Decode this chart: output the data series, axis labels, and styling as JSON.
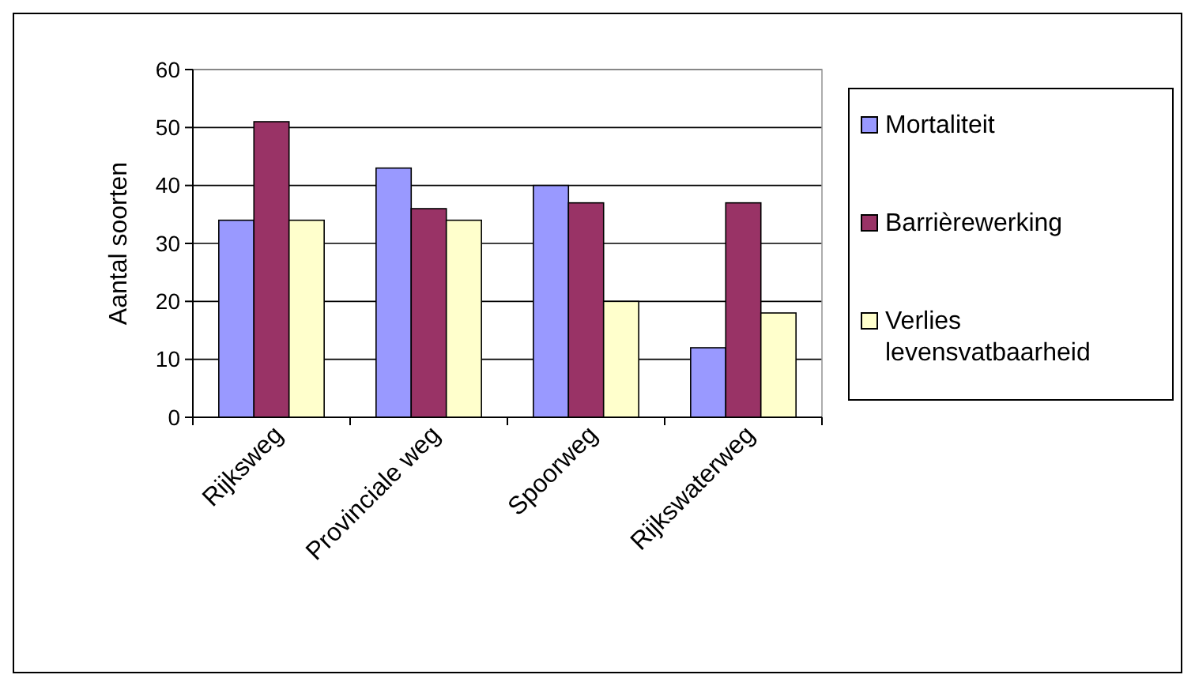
{
  "chart_data": {
    "type": "bar",
    "ylabel": "Aantal soorten",
    "categories": [
      "Rijksweg",
      "Provinciale weg",
      "Spoorweg",
      "Rijkswaterweg"
    ],
    "series": [
      {
        "name": "Mortaliteit",
        "color": "#9999ff",
        "values": [
          34,
          43,
          40,
          12
        ]
      },
      {
        "name": "Barrièrewerking",
        "color": "#993366",
        "values": [
          51,
          36,
          37,
          37
        ]
      },
      {
        "name": "Verlies levensvatbaarheid",
        "color": "#ffffcc",
        "values": [
          34,
          34,
          20,
          18
        ]
      }
    ],
    "ylim": [
      0,
      60
    ],
    "yticks": [
      0,
      10,
      20,
      30,
      40,
      50,
      60
    ],
    "grid": "y",
    "legend": "right"
  }
}
